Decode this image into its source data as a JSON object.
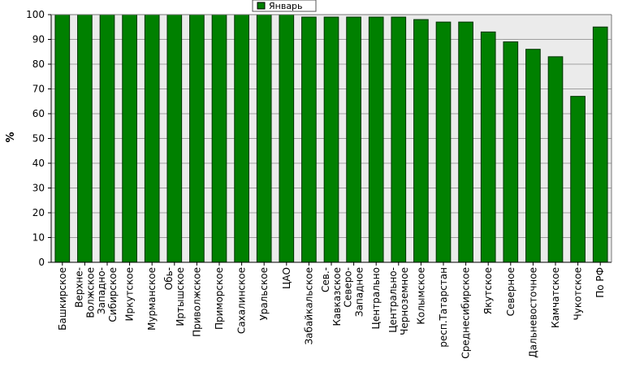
{
  "colors": {
    "bar": "#008000",
    "bar_edge": "#003300",
    "plot_bg": "#ebebeb",
    "grid": "#a0a0a0"
  },
  "chart_data": {
    "type": "bar",
    "title": "",
    "xlabel": "",
    "ylabel": "%",
    "ylim": [
      0,
      100
    ],
    "yticks": [
      0,
      10,
      20,
      30,
      40,
      50,
      60,
      70,
      80,
      90,
      100
    ],
    "grid": true,
    "legend_position": "top-center",
    "categories": [
      "Башкирское",
      "Верхне-Волжское",
      "Западно-Сибирское",
      "Иркутское",
      "Мурманское",
      "Обь-Иртышское",
      "Приволжское",
      "Приморское",
      "Сахалинское",
      "Уральское",
      "ЦАО",
      "Забайкальское",
      "Сев.-Кавказское",
      "Северо-Западное",
      "Центрально",
      "Центрально-Черноземное",
      "Колымское",
      "респ.Татарстан",
      "Среднесибирское",
      "Якутское",
      "Северное",
      "Дальневосточное",
      "Камчатское",
      "Чукотское",
      "По РФ"
    ],
    "series": [
      {
        "name": "Январь",
        "values": [
          100,
          100,
          100,
          100,
          100,
          100,
          100,
          100,
          100,
          100,
          100,
          99,
          99,
          99,
          99,
          99,
          98,
          97,
          97,
          93,
          89,
          86,
          83,
          67,
          95
        ]
      }
    ]
  }
}
